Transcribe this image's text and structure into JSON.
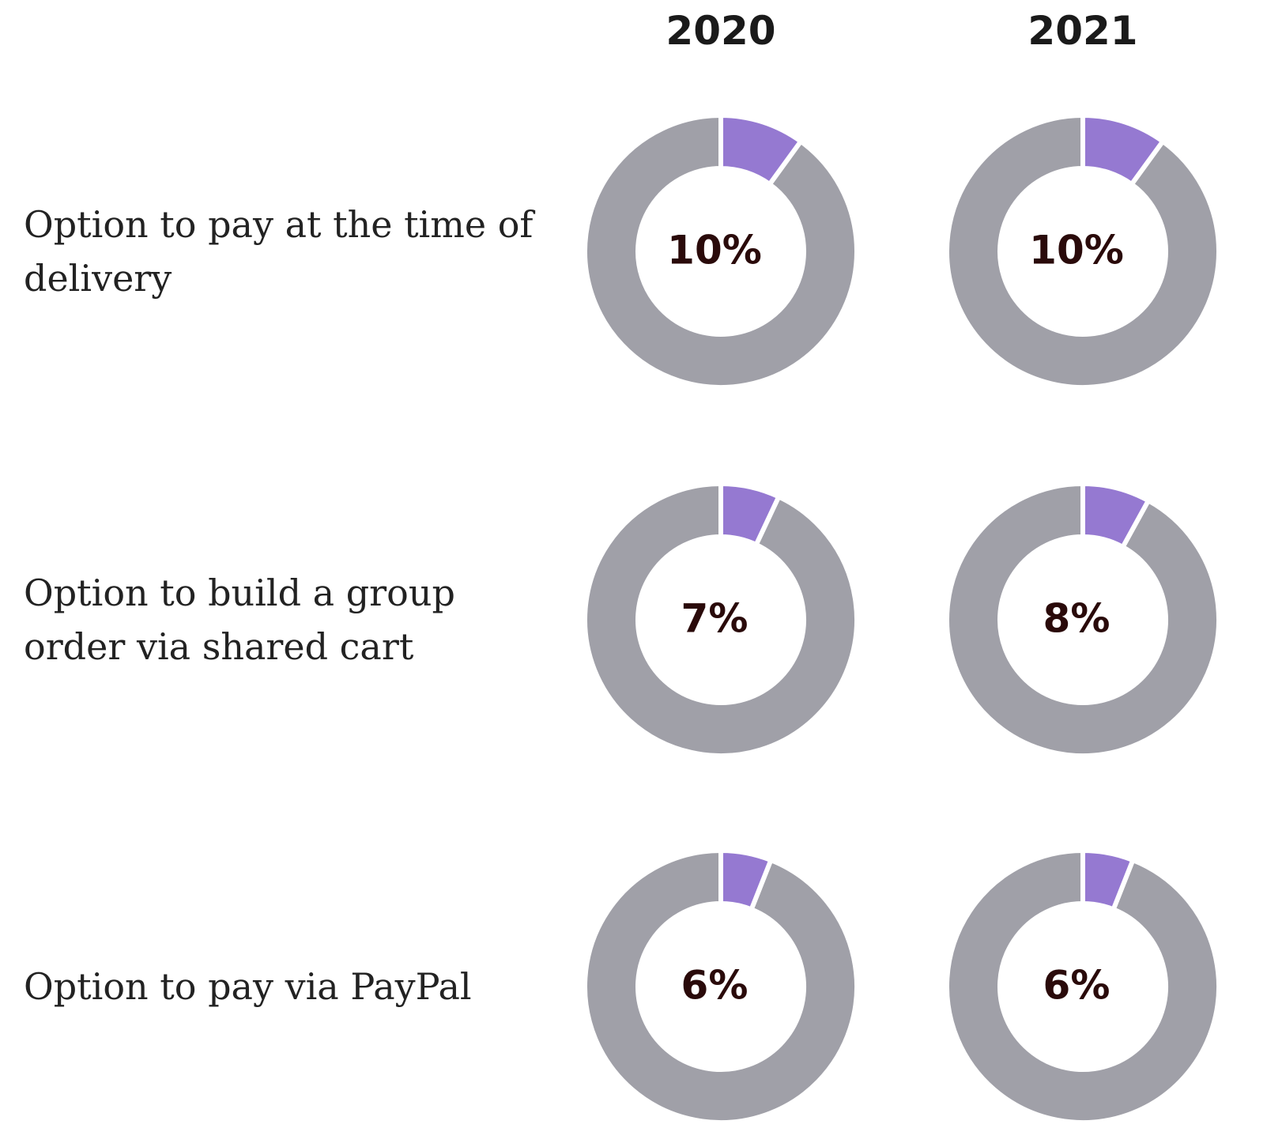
{
  "chart_data": {
    "type": "donut",
    "columns": [
      "2020",
      "2021"
    ],
    "rows": [
      {
        "label": "Option to pay at the time of delivery",
        "values": [
          10,
          10
        ],
        "value_labels": [
          "10%",
          "10%"
        ]
      },
      {
        "label": "Option to build a group order via shared cart",
        "values": [
          7,
          8
        ],
        "value_labels": [
          "7%",
          "8%"
        ]
      },
      {
        "label": "Option to pay via PayPal",
        "values": [
          6,
          6
        ],
        "value_labels": [
          "6%",
          "6%"
        ]
      }
    ],
    "total": 100,
    "color": "#9579d1",
    "rest_color": "#a0a0a8"
  }
}
